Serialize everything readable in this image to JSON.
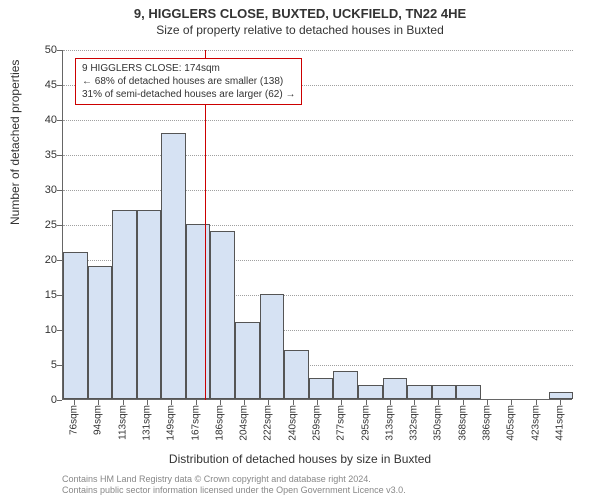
{
  "title": "9, HIGGLERS CLOSE, BUXTED, UCKFIELD, TN22 4HE",
  "subtitle": "Size of property relative to detached houses in Buxted",
  "y_axis_label": "Number of detached properties",
  "x_axis_label": "Distribution of detached houses by size in Buxted",
  "chart": {
    "type": "histogram",
    "ylim": [
      0,
      50
    ],
    "ytick_step": 5,
    "bar_fill": "#d6e2f3",
    "bar_border": "#555555",
    "grid_color": "#a0a0a0",
    "background": "#ffffff",
    "marker_color": "#cc0000",
    "x_labels": [
      "76sqm",
      "94sqm",
      "113sqm",
      "131sqm",
      "149sqm",
      "167sqm",
      "186sqm",
      "204sqm",
      "222sqm",
      "240sqm",
      "259sqm",
      "277sqm",
      "295sqm",
      "313sqm",
      "332sqm",
      "350sqm",
      "368sqm",
      "386sqm",
      "405sqm",
      "423sqm",
      "441sqm"
    ],
    "values": [
      21,
      19,
      27,
      27,
      38,
      25,
      24,
      11,
      15,
      7,
      3,
      4,
      2,
      3,
      2,
      2,
      2,
      0,
      0,
      0,
      1
    ],
    "marker_value": 174,
    "x_min": 67,
    "x_max": 450,
    "bar_count": 21
  },
  "info_box": {
    "line1": "9 HIGGLERS CLOSE: 174sqm",
    "line2": "← 68% of detached houses are smaller (138)",
    "line3": "31% of semi-detached houses are larger (62) →",
    "border_color": "#cc0000"
  },
  "footer": {
    "line1": "Contains HM Land Registry data © Crown copyright and database right 2024.",
    "line2": "Contains public sector information licensed under the Open Government Licence v3.0."
  },
  "fonts": {
    "title_size": 13,
    "subtitle_size": 12,
    "axis_label_size": 12,
    "tick_size": 11
  }
}
